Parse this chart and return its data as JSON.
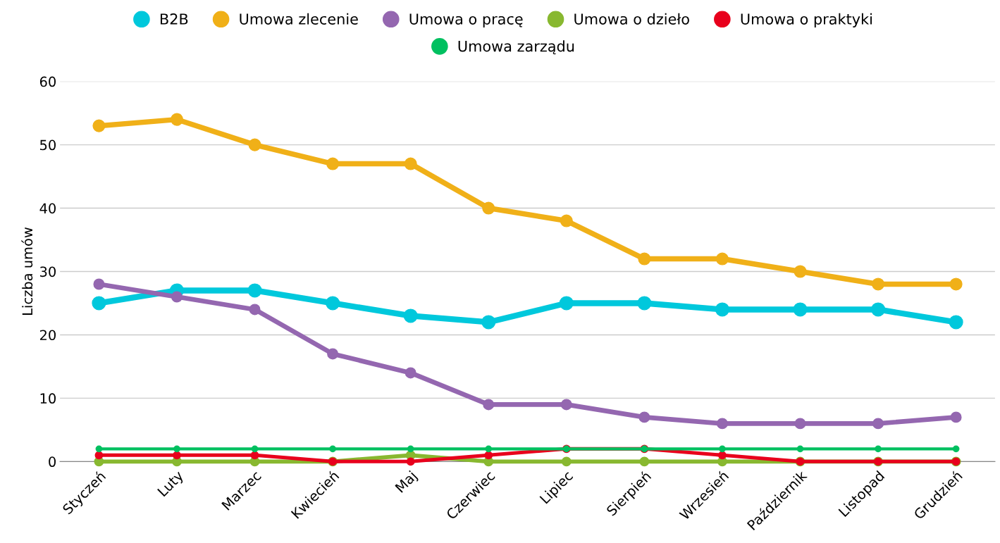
{
  "chart_data": {
    "type": "line",
    "ylabel": "Liczba umów",
    "categories": [
      "Styczeń",
      "Luty",
      "Marzec",
      "Kwiecień",
      "Maj",
      "Czerwiec",
      "Lipiec",
      "Sierpień",
      "Wrzesień",
      "Październik",
      "Listopad",
      "Grudzień"
    ],
    "series": [
      {
        "name": "B2B",
        "color": "#00c8dc",
        "values": [
          25,
          27,
          27,
          25,
          23,
          22,
          25,
          25,
          24,
          24,
          24,
          22
        ]
      },
      {
        "name": "Umowa zlecenie",
        "color": "#f0b018",
        "values": [
          53,
          54,
          50,
          47,
          47,
          40,
          38,
          32,
          32,
          30,
          28,
          28
        ]
      },
      {
        "name": "Umowa o pracę",
        "color": "#9467b0",
        "values": [
          28,
          26,
          24,
          17,
          14,
          9,
          9,
          7,
          6,
          6,
          6,
          7
        ]
      },
      {
        "name": "Umowa o dzieło",
        "color": "#88b830",
        "values": [
          0,
          0,
          0,
          0,
          1,
          0,
          0,
          0,
          0,
          0,
          0,
          0
        ]
      },
      {
        "name": "Umowa o praktyki",
        "color": "#e8001c",
        "values": [
          1,
          1,
          1,
          0,
          0,
          1,
          2,
          2,
          1,
          0,
          0,
          0
        ]
      },
      {
        "name": "Umowa zarządu",
        "color": "#00c060",
        "values": [
          2,
          2,
          2,
          2,
          2,
          2,
          2,
          2,
          2,
          2,
          2,
          2
        ]
      }
    ],
    "ylim": [
      0,
      60
    ],
    "yticks": [
      0,
      10,
      20,
      30,
      40,
      50,
      60
    ],
    "grid": "y",
    "legend": "top",
    "marker": "circle",
    "line_style": "solid"
  }
}
